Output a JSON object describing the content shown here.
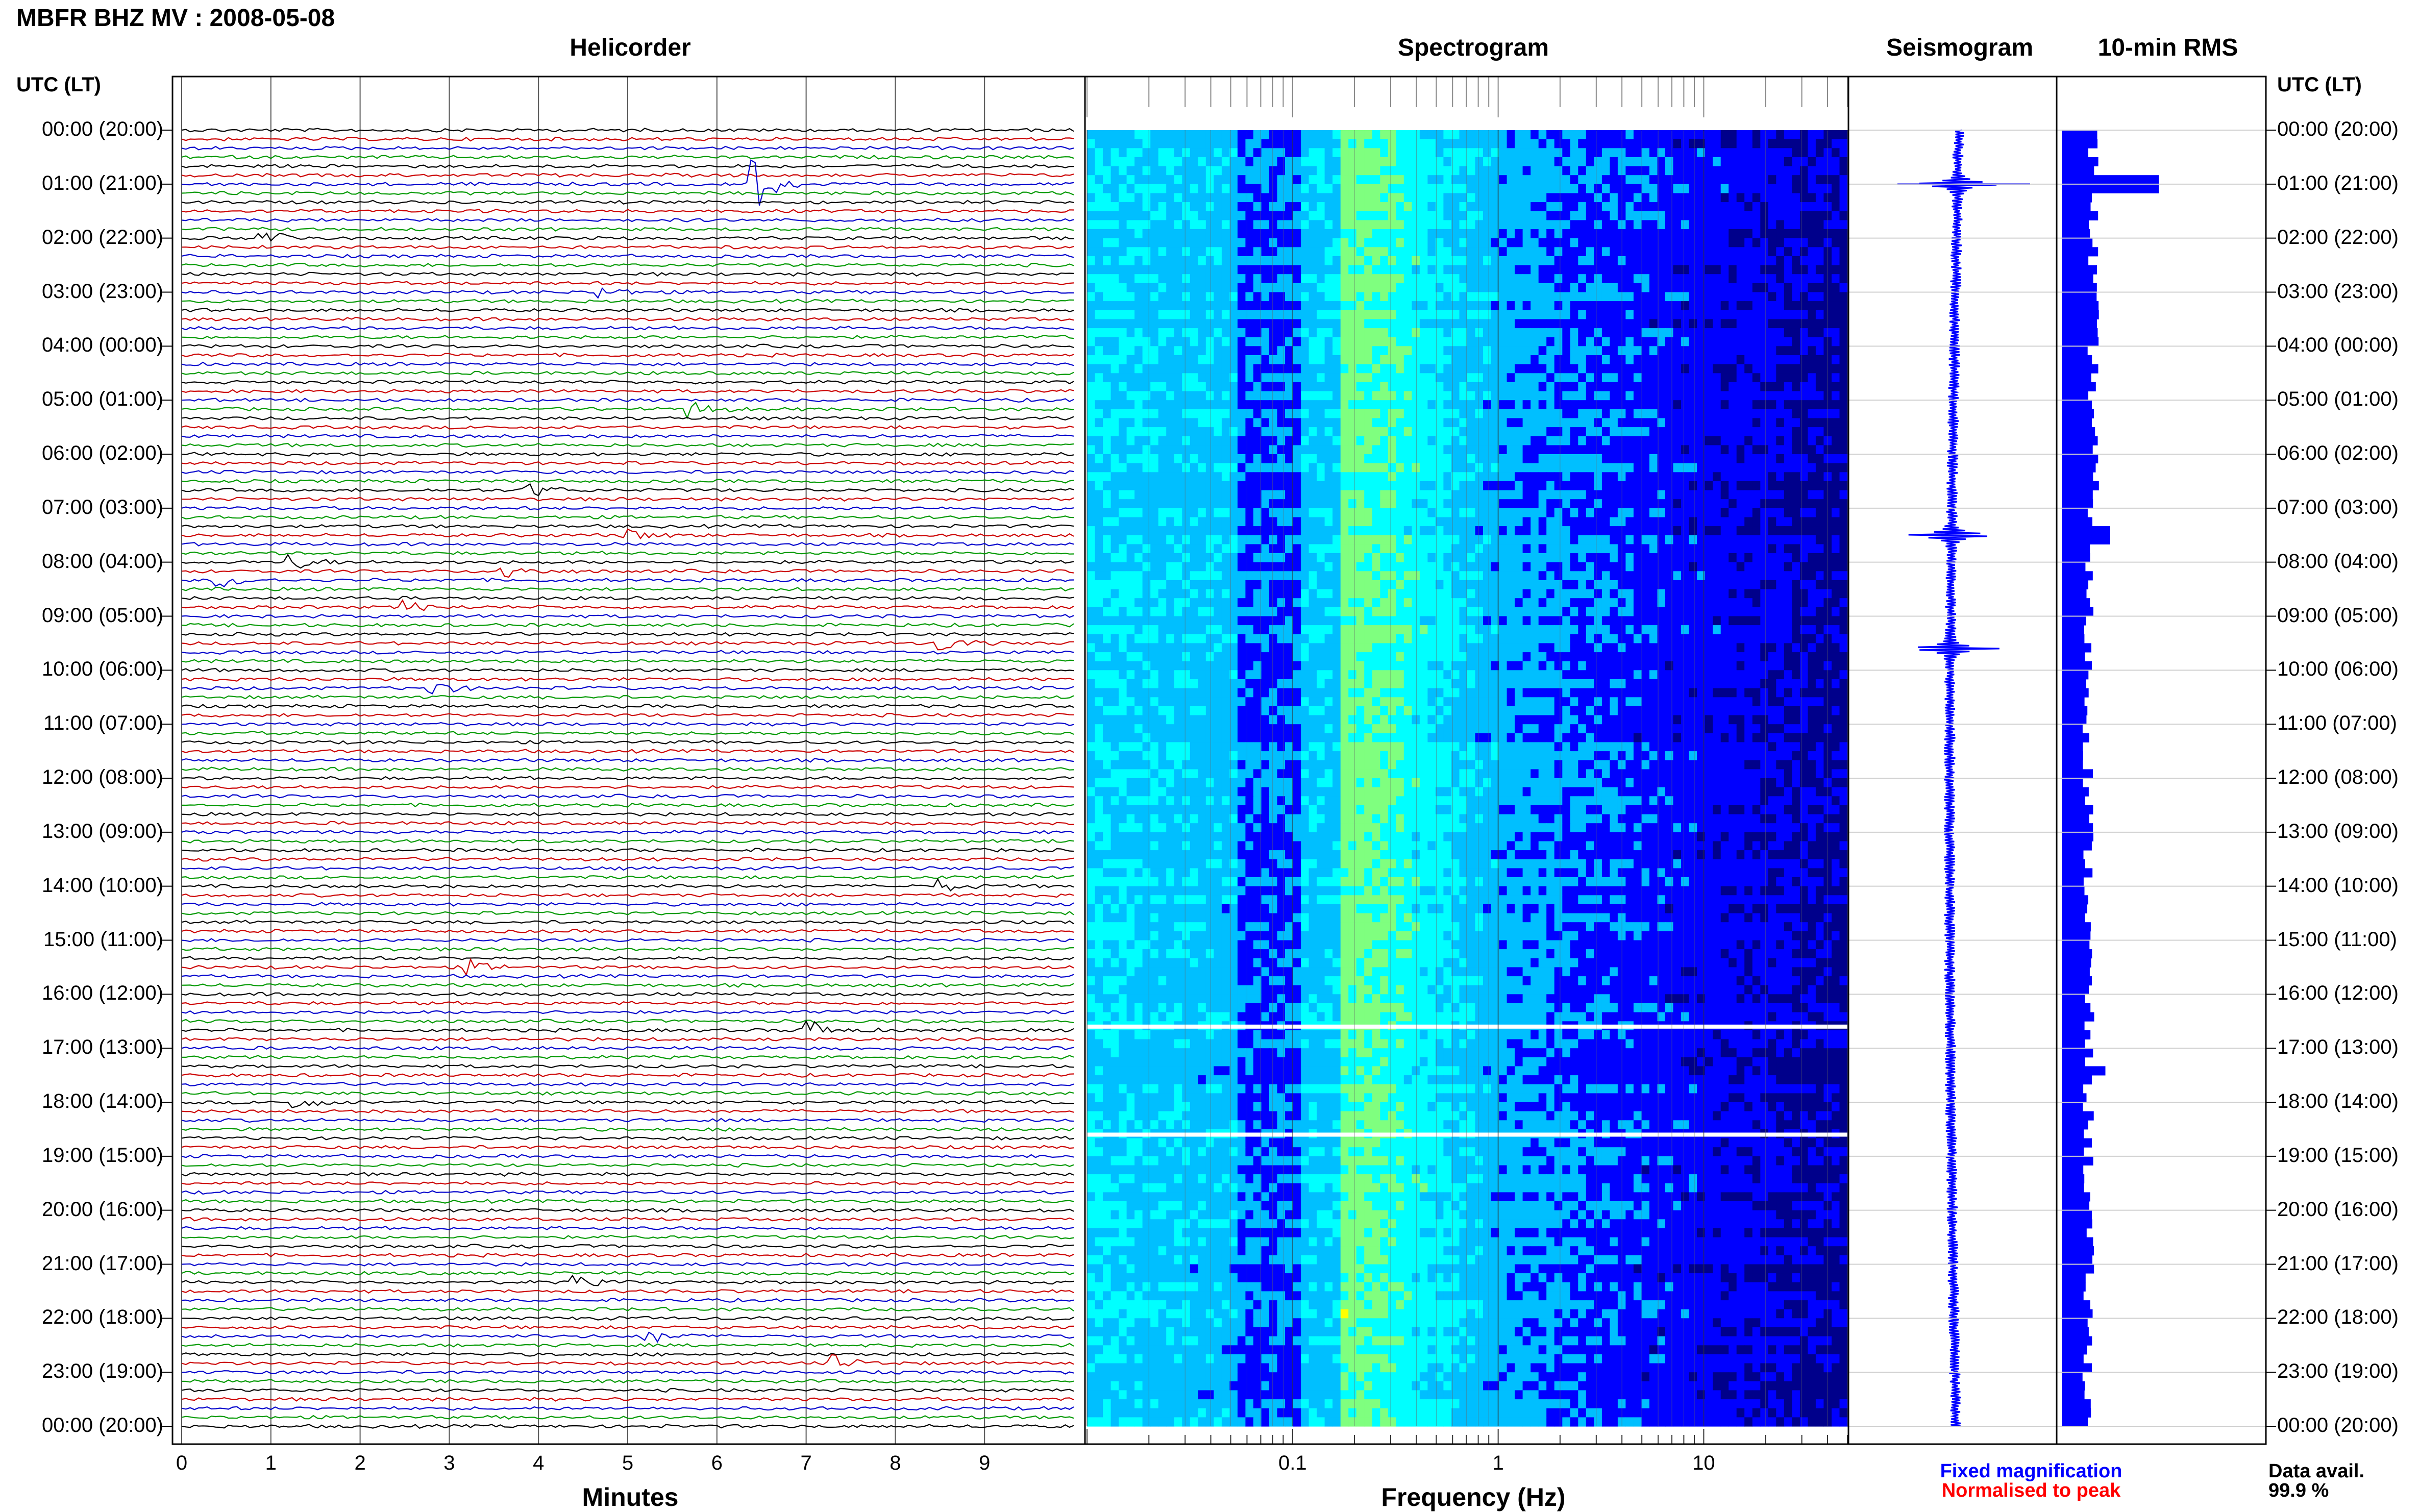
{
  "header": {
    "title": "MBFR BHZ MV : 2008-05-08",
    "utc_label_left": "UTC (LT)",
    "utc_label_right": "UTC (LT)"
  },
  "panels": {
    "helicorder": "Helicorder",
    "spectrogram": "Spectrogram",
    "seismogram": "Seismogram",
    "rms": "10-min RMS"
  },
  "hour_labels": [
    "00:00 (20:00)",
    "01:00 (21:00)",
    "02:00 (22:00)",
    "03:00 (23:00)",
    "04:00 (00:00)",
    "05:00 (01:00)",
    "06:00 (02:00)",
    "07:00 (03:00)",
    "08:00 (04:00)",
    "09:00 (05:00)",
    "10:00 (06:00)",
    "11:00 (07:00)",
    "12:00 (08:00)",
    "13:00 (09:00)",
    "14:00 (10:00)",
    "15:00 (11:00)",
    "16:00 (12:00)",
    "17:00 (13:00)",
    "18:00 (14:00)",
    "19:00 (15:00)",
    "20:00 (16:00)",
    "21:00 (17:00)",
    "22:00 (18:00)",
    "23:00 (19:00)",
    "00:00 (20:00)"
  ],
  "legend": {
    "fixed": "Fixed magnification",
    "normalised": "Normalised to peak",
    "fixed_color": "#0000ff",
    "normalised_color": "#ff0000"
  },
  "data_availability": {
    "label": "Data avail.",
    "value": "99.9 %"
  },
  "chart_data": [
    {
      "type": "line",
      "name": "helicorder",
      "xlabel": "Minutes",
      "ylabel": "",
      "xlim": [
        0,
        10
      ],
      "x_ticks": [
        0,
        1,
        2,
        3,
        4,
        5,
        6,
        7,
        8,
        9
      ],
      "rows_per_hour": 6,
      "trace_colors": [
        "#000000",
        "#cc0000",
        "#0000cc",
        "#009900"
      ],
      "events": [
        {
          "row": 6,
          "minute": 6.4,
          "amplitude": 1.0
        },
        {
          "row": 12,
          "minute": 0.9,
          "amplitude": 0.35
        },
        {
          "row": 18,
          "minute": 4.7,
          "amplitude": 0.2
        },
        {
          "row": 31,
          "minute": 5.7,
          "amplitude": 0.3
        },
        {
          "row": 40,
          "minute": 3.9,
          "amplitude": 0.25
        },
        {
          "row": 45,
          "minute": 5.0,
          "amplitude": 0.2
        },
        {
          "row": 48,
          "minute": 1.2,
          "amplitude": 0.3
        },
        {
          "row": 49,
          "minute": 3.6,
          "amplitude": 0.3
        },
        {
          "row": 50,
          "minute": 0.4,
          "amplitude": 0.3
        },
        {
          "row": 53,
          "minute": 2.5,
          "amplitude": 0.2
        },
        {
          "row": 57,
          "minute": 8.5,
          "amplitude": 0.3
        },
        {
          "row": 62,
          "minute": 2.8,
          "amplitude": 0.25
        },
        {
          "row": 84,
          "minute": 8.5,
          "amplitude": 0.2
        },
        {
          "row": 93,
          "minute": 3.2,
          "amplitude": 0.25
        },
        {
          "row": 100,
          "minute": 7.0,
          "amplitude": 0.4
        },
        {
          "row": 108,
          "minute": 1.2,
          "amplitude": 0.3
        },
        {
          "row": 128,
          "minute": 4.4,
          "amplitude": 0.2
        },
        {
          "row": 134,
          "minute": 5.2,
          "amplitude": 0.3
        },
        {
          "row": 137,
          "minute": 7.3,
          "amplitude": 0.3
        }
      ]
    },
    {
      "type": "heatmap",
      "name": "spectrogram",
      "xlabel": "Frequency (Hz)",
      "ylabel": "",
      "x_scale": "log",
      "xlim": [
        0.01,
        50
      ],
      "x_tick_labels": [
        "0.1",
        "1",
        "10"
      ],
      "x_ticks": [
        0.1,
        1,
        10
      ],
      "gaps_hours": [
        16.6,
        18.6
      ],
      "colormap": [
        "#00008b",
        "#0000ff",
        "#00bfff",
        "#00ffff",
        "#7fff7f",
        "#ffff00"
      ]
    },
    {
      "type": "line",
      "name": "seismogram",
      "xlabel": "",
      "ylabel": "",
      "spikes_hours": [
        1.0,
        7.5,
        9.6
      ]
    },
    {
      "type": "bar",
      "name": "10-min RMS",
      "xlabel": "",
      "ylabel": "",
      "y_unit": "relative",
      "peaks_hours": [
        {
          "hour": 1.0,
          "value": 1.0
        },
        {
          "hour": 7.5,
          "value": 0.5
        },
        {
          "hour": 17.4,
          "value": 0.45
        }
      ],
      "baseline": 0.3
    }
  ]
}
